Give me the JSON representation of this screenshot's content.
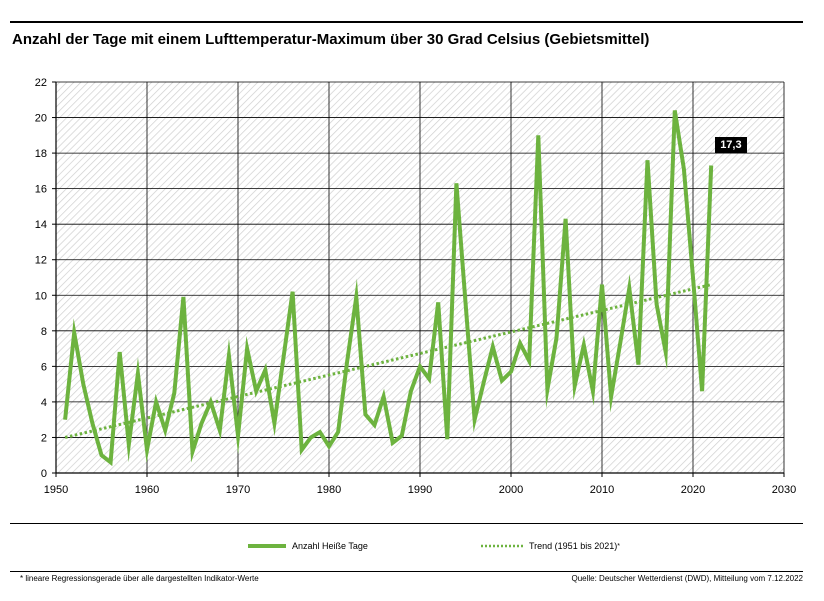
{
  "title": "Anzahl der Tage mit einem Lufttemperatur-Maximum über 30 Grad Celsius (Gebietsmittel)",
  "footnote": "* lineare Regressionsgerade über alle dargestellten Indikator-Werte",
  "source": "Quelle: Deutscher Wetterdienst (DWD), Mitteilung vom 7.12.2022",
  "callout": "17,3",
  "legend": {
    "series_label": "Anzahl Heiße Tage",
    "trend_label": "Trend (1951 bis 2021)",
    "trend_marker": "*"
  },
  "colors": {
    "series": "#6db33f",
    "trend": "#6db33f",
    "grid": "#000000",
    "hatch": "#d0d0d0"
  },
  "chart_data": {
    "type": "line",
    "xlim": [
      1950,
      2030
    ],
    "ylim": [
      0,
      22
    ],
    "xticks": [
      1950,
      1960,
      1970,
      1980,
      1990,
      2000,
      2010,
      2020,
      2030
    ],
    "yticks": [
      0,
      2,
      4,
      6,
      8,
      10,
      12,
      14,
      16,
      18,
      20,
      22
    ],
    "grid": true,
    "legend_position": "bottom",
    "series": [
      {
        "name": "Anzahl Heiße Tage",
        "x": [
          1951,
          1952,
          1953,
          1954,
          1955,
          1956,
          1957,
          1958,
          1959,
          1960,
          1961,
          1962,
          1963,
          1964,
          1965,
          1966,
          1967,
          1968,
          1969,
          1970,
          1971,
          1972,
          1973,
          1974,
          1975,
          1976,
          1977,
          1978,
          1979,
          1980,
          1981,
          1982,
          1983,
          1984,
          1985,
          1986,
          1987,
          1988,
          1989,
          1990,
          1991,
          1992,
          1993,
          1994,
          1995,
          1996,
          1997,
          1998,
          1999,
          2000,
          2001,
          2002,
          2003,
          2004,
          2005,
          2006,
          2007,
          2008,
          2009,
          2010,
          2011,
          2012,
          2013,
          2014,
          2015,
          2016,
          2017,
          2018,
          2019,
          2020,
          2021,
          2022
        ],
        "y": [
          3.0,
          7.9,
          5.0,
          2.8,
          1.0,
          0.6,
          6.8,
          1.6,
          5.6,
          1.3,
          4.0,
          2.4,
          4.5,
          9.9,
          1.2,
          2.8,
          4.0,
          2.4,
          6.6,
          2.1,
          7.0,
          4.6,
          5.8,
          2.8,
          6.5,
          10.2,
          1.3,
          2.0,
          2.3,
          1.5,
          2.3,
          6.3,
          9.9,
          3.3,
          2.7,
          4.3,
          1.7,
          2.1,
          4.6,
          6.0,
          5.3,
          9.6,
          1.9,
          16.3,
          9.6,
          3.0,
          5.1,
          7.1,
          5.2,
          5.7,
          7.3,
          6.3,
          19.0,
          4.7,
          7.6,
          14.3,
          4.9,
          7.2,
          4.6,
          10.6,
          4.3,
          7.3,
          10.4,
          6.1,
          17.6,
          9.5,
          6.8,
          20.4,
          17.1,
          11.0,
          4.6,
          17.3
        ]
      },
      {
        "name": "Trend (1951 bis 2021)",
        "x": [
          1951,
          2022
        ],
        "y": [
          2.0,
          10.6
        ]
      }
    ]
  }
}
